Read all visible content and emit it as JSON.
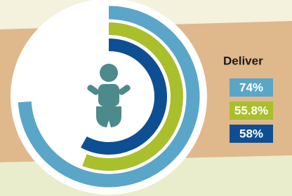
{
  "chart_data": {
    "type": "radial_bar",
    "title": "Deliver",
    "categories": [
      null,
      null,
      null
    ],
    "values": [
      74,
      55.8,
      58
    ],
    "value_labels": [
      "74%",
      "55.8%",
      "58%"
    ],
    "colors": [
      "#5aa6c9",
      "#a9bf2b",
      "#0e4f93"
    ],
    "ylim": [
      0,
      100
    ]
  }
}
